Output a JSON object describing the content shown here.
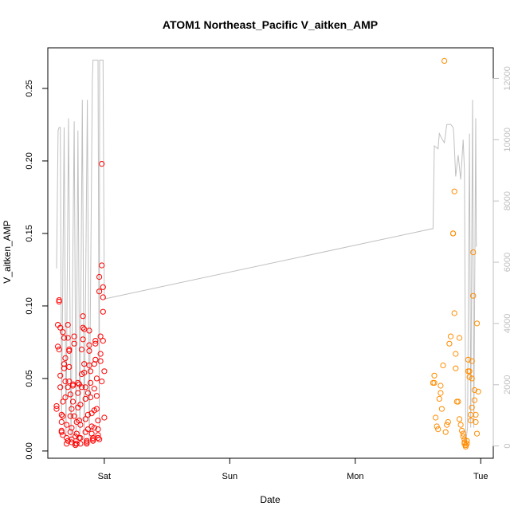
{
  "chart_data": {
    "type": "scatter",
    "title": "ATOM1 Northeast_Pacific V_aitken_AMP",
    "xlabel": "Date",
    "ylabel": "V_aitken_AMP",
    "x_ticks": [
      {
        "label": "Sat",
        "day": 1.0
      },
      {
        "label": "Sun",
        "day": 2.0
      },
      {
        "label": "Mon",
        "day": 3.0
      },
      {
        "label": "Tue",
        "day": 4.0
      }
    ],
    "xlim_days": [
      0.55,
      4.1
    ],
    "ylim": [
      -0.005,
      0.278
    ],
    "y_ticks": [
      0.0,
      0.05,
      0.1,
      0.15,
      0.2,
      0.25
    ],
    "y2lim": [
      -400,
      13000
    ],
    "y2_ticks": [
      0,
      2000,
      4000,
      6000,
      8000,
      10000,
      12000
    ],
    "colors": {
      "series_1": "#ff0000",
      "series_2": "#ff8c00",
      "line": "#c0c0c0",
      "box": "#000000"
    },
    "series": [
      {
        "color": "#ff0000",
        "points": [
          [
            0.62,
            0.031
          ],
          [
            0.62,
            0.029
          ],
          [
            0.63,
            0.072
          ],
          [
            0.63,
            0.087
          ],
          [
            0.64,
            0.104
          ],
          [
            0.64,
            0.103
          ],
          [
            0.64,
            0.07
          ],
          [
            0.65,
            0.085
          ],
          [
            0.65,
            0.044
          ],
          [
            0.65,
            0.052
          ],
          [
            0.66,
            0.025
          ],
          [
            0.66,
            0.02
          ],
          [
            0.66,
            0.014
          ],
          [
            0.66,
            0.013
          ],
          [
            0.67,
            0.011
          ],
          [
            0.67,
            0.034
          ],
          [
            0.67,
            0.024
          ],
          [
            0.67,
            0.082
          ],
          [
            0.68,
            0.078
          ],
          [
            0.68,
            0.06
          ],
          [
            0.68,
            0.057
          ],
          [
            0.69,
            0.064
          ],
          [
            0.69,
            0.048
          ],
          [
            0.69,
            0.037
          ],
          [
            0.7,
            0.018
          ],
          [
            0.7,
            0.009
          ],
          [
            0.7,
            0.005
          ],
          [
            0.71,
            0.007
          ],
          [
            0.71,
            0.044
          ],
          [
            0.71,
            0.078
          ],
          [
            0.71,
            0.087
          ],
          [
            0.72,
            0.07
          ],
          [
            0.72,
            0.069
          ],
          [
            0.72,
            0.058
          ],
          [
            0.72,
            0.048
          ],
          [
            0.73,
            0.039
          ],
          [
            0.73,
            0.024
          ],
          [
            0.73,
            0.013
          ],
          [
            0.74,
            0.006
          ],
          [
            0.74,
            0.008
          ],
          [
            0.74,
            0.016
          ],
          [
            0.74,
            0.029
          ],
          [
            0.75,
            0.034
          ],
          [
            0.75,
            0.046
          ],
          [
            0.75,
            0.045
          ],
          [
            0.76,
            0.079
          ],
          [
            0.76,
            0.074
          ],
          [
            0.76,
            0.024
          ],
          [
            0.77,
            0.01
          ],
          [
            0.77,
            0.005
          ],
          [
            0.77,
            0.004
          ],
          [
            0.78,
            0.005
          ],
          [
            0.78,
            0.012
          ],
          [
            0.78,
            0.02
          ],
          [
            0.79,
            0.03
          ],
          [
            0.79,
            0.04
          ],
          [
            0.79,
            0.047
          ],
          [
            0.8,
            0.046
          ],
          [
            0.8,
            0.021
          ],
          [
            0.8,
            0.009
          ],
          [
            0.81,
            0.005
          ],
          [
            0.81,
            0.009
          ],
          [
            0.81,
            0.018
          ],
          [
            0.81,
            0.032
          ],
          [
            0.82,
            0.044
          ],
          [
            0.82,
            0.053
          ],
          [
            0.82,
            0.07
          ],
          [
            0.83,
            0.077
          ],
          [
            0.83,
            0.093
          ],
          [
            0.83,
            0.085
          ],
          [
            0.84,
            0.084
          ],
          [
            0.84,
            0.06
          ],
          [
            0.84,
            0.054
          ],
          [
            0.85,
            0.044
          ],
          [
            0.85,
            0.036
          ],
          [
            0.85,
            0.022
          ],
          [
            0.85,
            0.013
          ],
          [
            0.86,
            0.007
          ],
          [
            0.86,
            0.005
          ],
          [
            0.86,
            0.006
          ],
          [
            0.87,
            0.015
          ],
          [
            0.87,
            0.025
          ],
          [
            0.87,
            0.04
          ],
          [
            0.88,
            0.059
          ],
          [
            0.88,
            0.073
          ],
          [
            0.88,
            0.083
          ],
          [
            0.88,
            0.069
          ],
          [
            0.89,
            0.055
          ],
          [
            0.89,
            0.047
          ],
          [
            0.89,
            0.037
          ],
          [
            0.9,
            0.026
          ],
          [
            0.9,
            0.017
          ],
          [
            0.9,
            0.012
          ],
          [
            0.91,
            0.009
          ],
          [
            0.91,
            0.007
          ],
          [
            0.91,
            0.008
          ],
          [
            0.92,
            0.016
          ],
          [
            0.92,
            0.028
          ],
          [
            0.92,
            0.043
          ],
          [
            0.92,
            0.06
          ],
          [
            0.93,
            0.076
          ],
          [
            0.93,
            0.074
          ],
          [
            0.93,
            0.063
          ],
          [
            0.94,
            0.05
          ],
          [
            0.94,
            0.038
          ],
          [
            0.94,
            0.029
          ],
          [
            0.95,
            0.021
          ],
          [
            0.95,
            0.015
          ],
          [
            0.95,
            0.011
          ],
          [
            0.95,
            0.009
          ],
          [
            0.96,
            0.008
          ],
          [
            0.96,
            0.12
          ],
          [
            0.96,
            0.11
          ],
          [
            0.97,
            0.079
          ],
          [
            0.97,
            0.067
          ],
          [
            0.97,
            0.062
          ],
          [
            0.98,
            0.048
          ],
          [
            0.98,
            0.198
          ],
          [
            0.98,
            0.128
          ],
          [
            0.99,
            0.113
          ],
          [
            0.99,
            0.106
          ],
          [
            0.99,
            0.096
          ],
          [
            0.99,
            0.076
          ],
          [
            1.0,
            0.055
          ],
          [
            1.0,
            0.023
          ]
        ]
      },
      {
        "color": "#ff8c00",
        "points": [
          [
            3.62,
            0.047
          ],
          [
            3.63,
            0.052
          ],
          [
            3.63,
            0.047
          ],
          [
            3.64,
            0.023
          ],
          [
            3.65,
            0.017
          ],
          [
            3.66,
            0.015
          ],
          [
            3.67,
            0.036
          ],
          [
            3.68,
            0.04
          ],
          [
            3.68,
            0.045
          ],
          [
            3.69,
            0.029
          ],
          [
            3.7,
            0.059
          ],
          [
            3.71,
            0.269
          ],
          [
            3.72,
            0.013
          ],
          [
            3.73,
            0.018
          ],
          [
            3.74,
            0.02
          ],
          [
            3.75,
            0.074
          ],
          [
            3.76,
            0.079
          ],
          [
            3.78,
            0.15
          ],
          [
            3.78,
            0.15
          ],
          [
            3.79,
            0.179
          ],
          [
            3.79,
            0.095
          ],
          [
            3.8,
            0.067
          ],
          [
            3.8,
            0.057
          ],
          [
            3.81,
            0.034
          ],
          [
            3.82,
            0.034
          ],
          [
            3.83,
            0.078
          ],
          [
            3.83,
            0.022
          ],
          [
            3.84,
            0.018
          ],
          [
            3.85,
            0.014
          ],
          [
            3.86,
            0.012
          ],
          [
            3.86,
            0.01
          ],
          [
            3.87,
            0.008
          ],
          [
            3.87,
            0.006
          ],
          [
            3.87,
            0.005
          ],
          [
            3.88,
            0.004
          ],
          [
            3.88,
            0.003
          ],
          [
            3.88,
            0.004
          ],
          [
            3.89,
            0.005
          ],
          [
            3.89,
            0.007
          ],
          [
            3.9,
            0.055
          ],
          [
            3.9,
            0.063
          ],
          [
            3.91,
            0.055
          ],
          [
            3.91,
            0.051
          ],
          [
            3.92,
            0.025
          ],
          [
            3.92,
            0.021
          ],
          [
            3.93,
            0.062
          ],
          [
            3.93,
            0.05
          ],
          [
            3.93,
            0.03
          ],
          [
            3.94,
            0.137
          ],
          [
            3.94,
            0.107
          ],
          [
            3.95,
            0.042
          ],
          [
            3.95,
            0.035
          ],
          [
            3.96,
            0.025
          ],
          [
            3.96,
            0.02
          ],
          [
            3.97,
            0.012
          ],
          [
            3.97,
            0.088
          ],
          [
            3.98,
            0.041
          ]
        ]
      }
    ],
    "line_series": {
      "axis": "right",
      "points": [
        [
          0.62,
          5800
        ],
        [
          0.632,
          10300
        ],
        [
          0.64,
          10400
        ],
        [
          0.65,
          10400
        ],
        [
          0.66,
          1000
        ],
        [
          0.68,
          10400
        ],
        [
          0.695,
          300
        ],
        [
          0.715,
          10700
        ],
        [
          0.735,
          200
        ],
        [
          0.76,
          10600
        ],
        [
          0.775,
          200
        ],
        [
          0.79,
          10300
        ],
        [
          0.805,
          300
        ],
        [
          0.825,
          11300
        ],
        [
          0.84,
          200
        ],
        [
          0.865,
          11300
        ],
        [
          0.88,
          200
        ],
        [
          0.905,
          12000
        ],
        [
          0.91,
          12600
        ],
        [
          0.93,
          12600
        ],
        [
          0.95,
          12600
        ],
        [
          0.96,
          600
        ],
        [
          0.963,
          12600
        ],
        [
          0.99,
          12600
        ],
        [
          1.0,
          4800
        ],
        [
          3.62,
          7100
        ],
        [
          3.63,
          9800
        ],
        [
          3.66,
          9700
        ],
        [
          3.67,
          10200
        ],
        [
          3.695,
          10000
        ],
        [
          3.71,
          9900
        ],
        [
          3.73,
          10500
        ],
        [
          3.76,
          10500
        ],
        [
          3.78,
          10400
        ],
        [
          3.785,
          10200
        ],
        [
          3.8,
          8800
        ],
        [
          3.82,
          9500
        ],
        [
          3.84,
          8700
        ],
        [
          3.86,
          10000
        ],
        [
          3.87,
          9000
        ],
        [
          3.88,
          100
        ],
        [
          3.895,
          600
        ],
        [
          3.91,
          10200
        ],
        [
          3.92,
          600
        ],
        [
          3.935,
          11300
        ],
        [
          3.945,
          600
        ],
        [
          3.96,
          10700
        ],
        [
          3.965,
          6500
        ]
      ]
    }
  }
}
